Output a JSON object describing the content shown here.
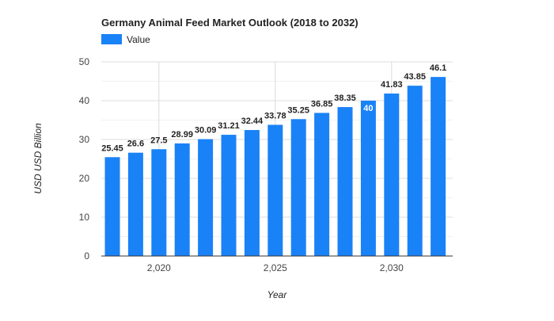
{
  "chart_data": {
    "type": "bar",
    "title": "Germany Animal Feed Market Outlook (2018 to 2032)",
    "xlabel": "Year",
    "ylabel": "USD USD Billion",
    "legend": {
      "placement": "top-left",
      "entries": [
        "Value"
      ]
    },
    "grid": true,
    "ylim": [
      0,
      50
    ],
    "y_ticks": [
      "0",
      "10",
      "20",
      "30",
      "40",
      "50"
    ],
    "x_ticks": [
      "2,020",
      "2,025",
      "2,030"
    ],
    "x_tick_values": [
      2020,
      2025,
      2030
    ],
    "x_years": [
      2018,
      2019,
      2020,
      2021,
      2022,
      2023,
      2024,
      2025,
      2026,
      2027,
      2028,
      2029,
      2030,
      2031,
      2032
    ],
    "values": [
      25.45,
      26.6,
      27.5,
      28.99,
      30.09,
      31.21,
      32.44,
      33.78,
      35.25,
      36.85,
      38.35,
      40,
      41.83,
      43.85,
      46.1
    ],
    "data_labels": [
      "25.45",
      "26.6",
      "27.5",
      "28.99",
      "30.09",
      "31.21",
      "32.44",
      "33.78",
      "35.25",
      "36.85",
      "38.35",
      "40",
      "41.83",
      "43.85",
      "46.1"
    ],
    "series": [
      {
        "name": "Value",
        "color": "#1a82f7"
      }
    ]
  }
}
